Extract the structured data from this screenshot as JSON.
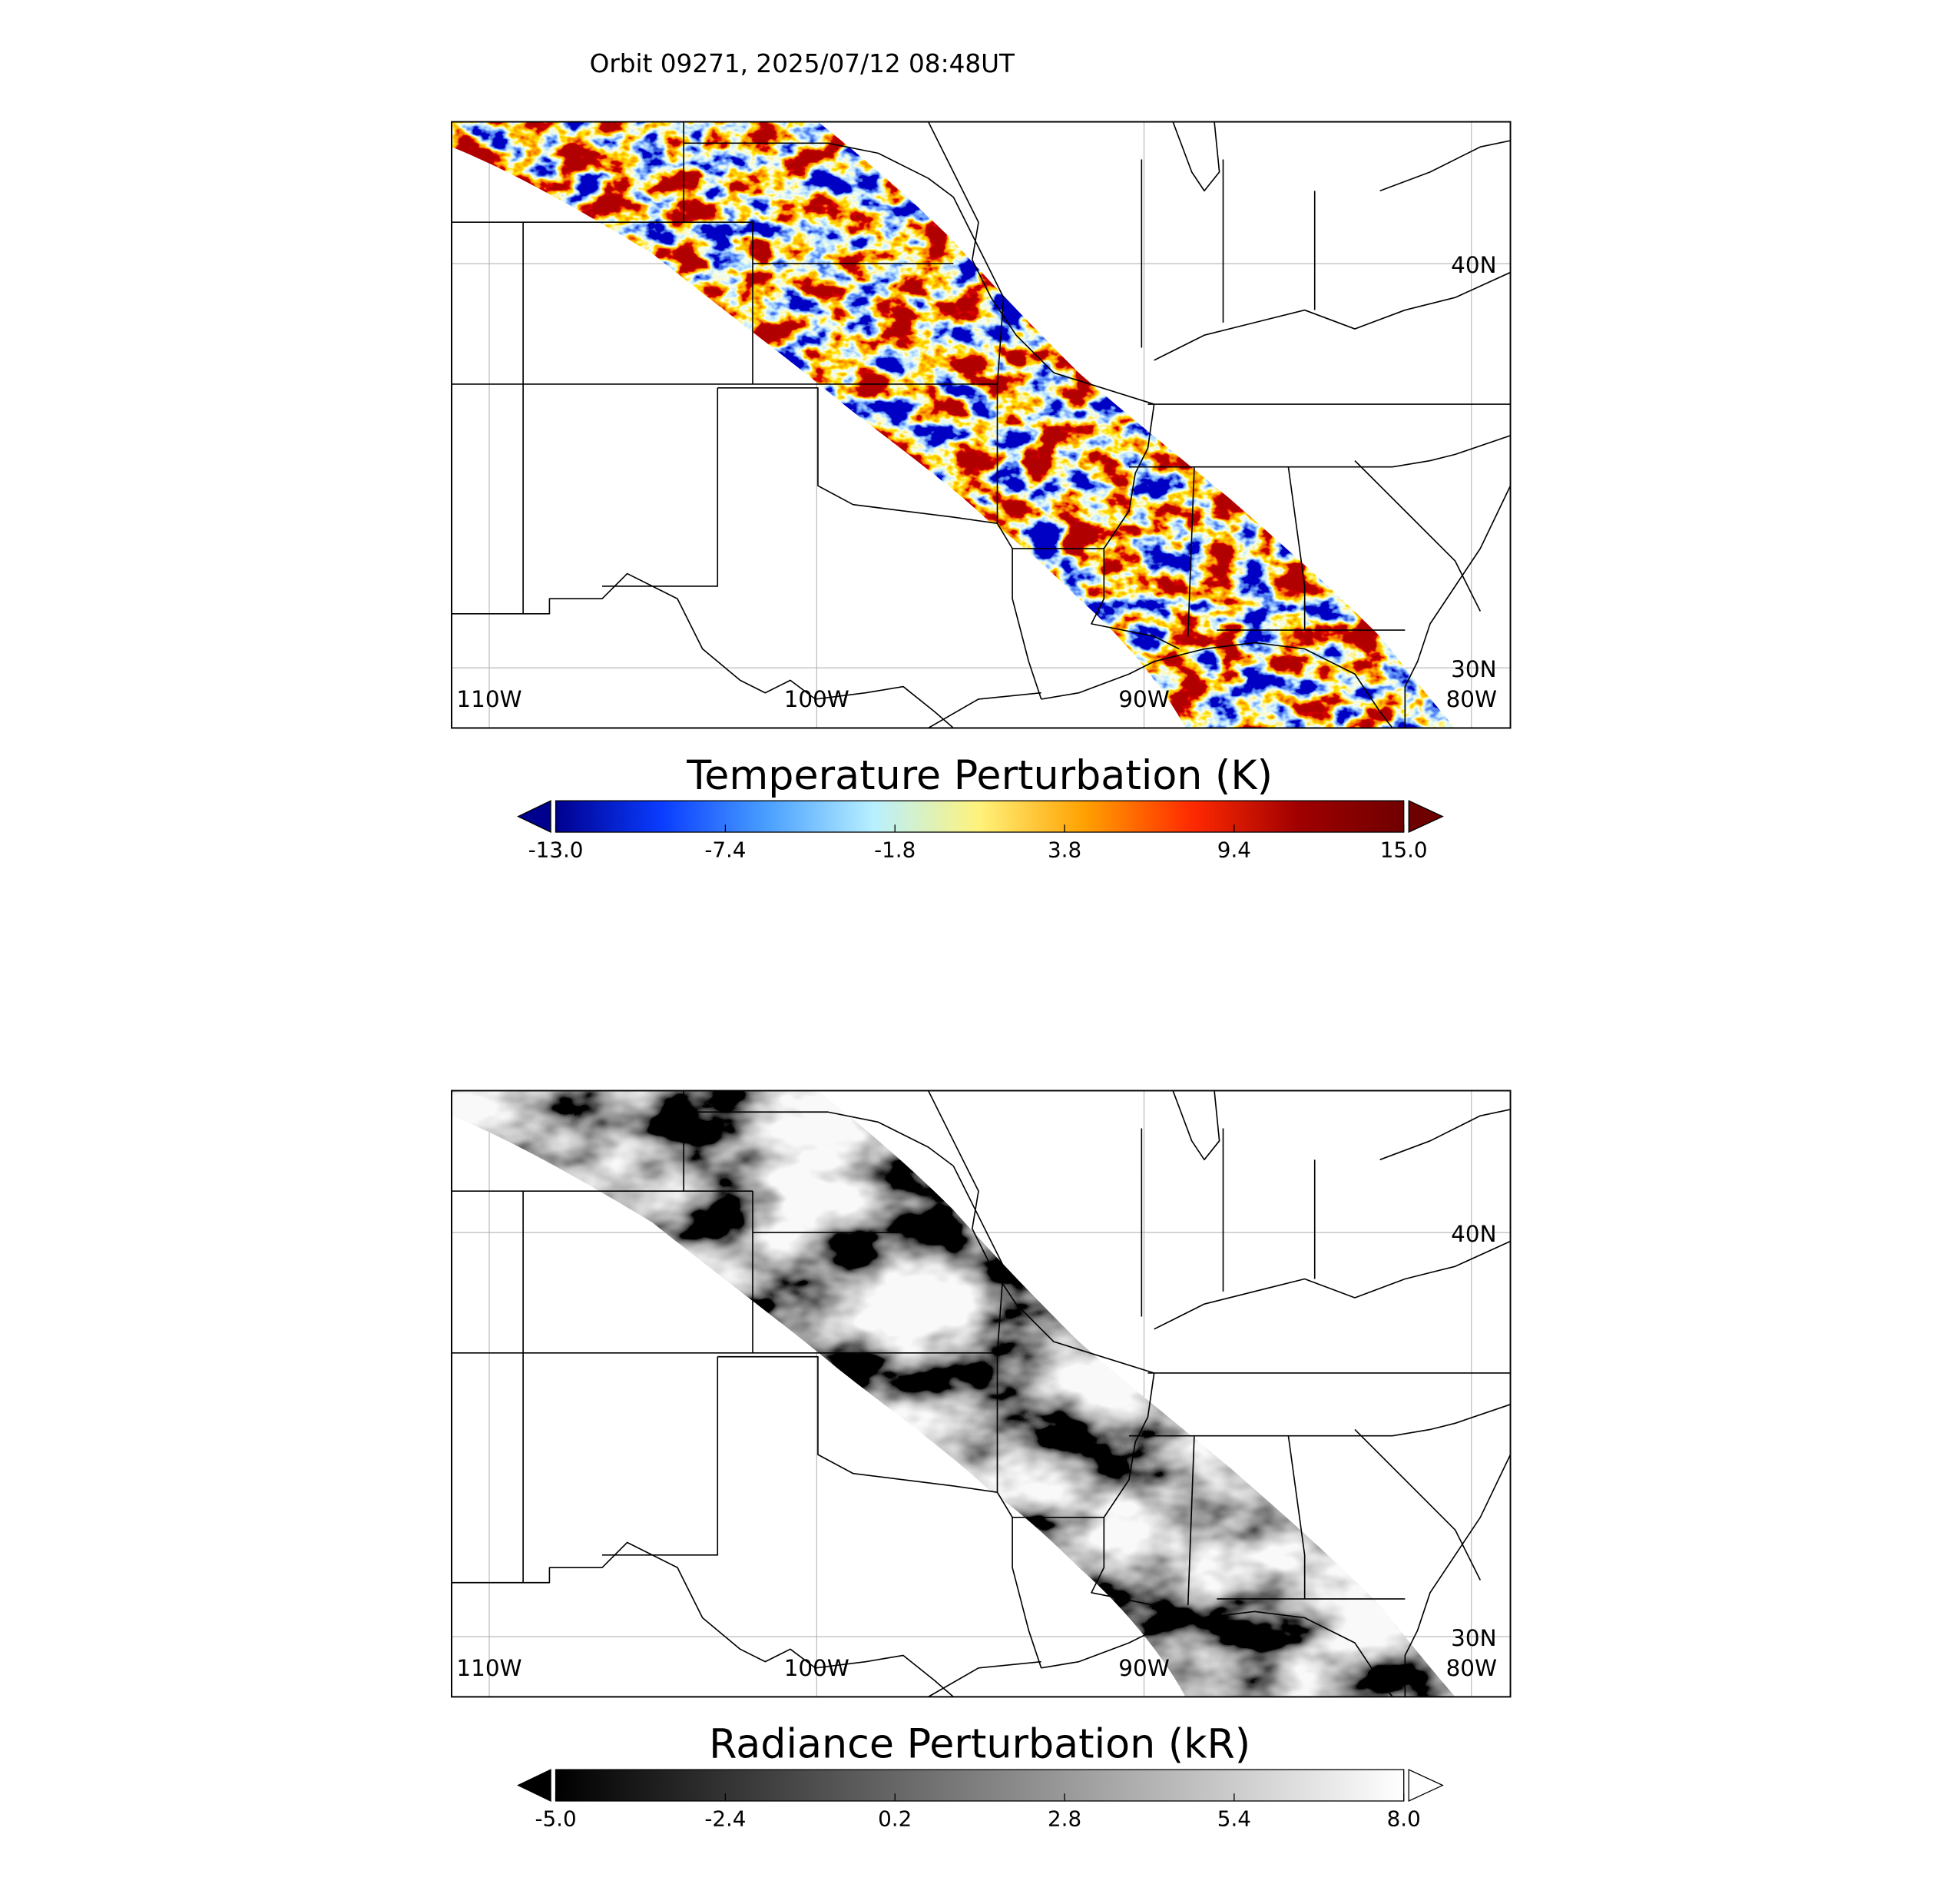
{
  "title": "Orbit 09271, 2025/07/12 08:48UT",
  "panels": [
    {
      "map": {
        "xlim": [
          -111.15,
          -78.81
        ],
        "ylim": [
          28.51,
          43.51
        ],
        "xticks": [
          {
            "value": -110,
            "label": "110W"
          },
          {
            "value": -100,
            "label": "100W"
          },
          {
            "value": -90,
            "label": "90W"
          },
          {
            "value": -80,
            "label": "80W"
          }
        ],
        "yticks": [
          {
            "value": 30,
            "label": "30N"
          },
          {
            "value": 40,
            "label": "40N"
          }
        ],
        "colors": [
          "#00008f",
          "#1f4fff",
          "#8fd6ff",
          "#f2ffd0",
          "#ffd000",
          "#ff5a00",
          "#c00000",
          "#6f0000"
        ]
      },
      "colorbar": {
        "label": "Temperature Perturbation (K)",
        "lim": [
          -13,
          15
        ],
        "ticks": [
          {
            "value": -13,
            "label": "-13.0"
          },
          -7.4,
          -1.8,
          3.8,
          9.4,
          {
            "value": 15,
            "label": "15.0"
          }
        ],
        "colors": [
          "#00008f",
          "#0a3cff",
          "#4aa0ff",
          "#b8f0ff",
          "#fff27a",
          "#ffa000",
          "#ff2a00",
          "#a00000",
          "#6f0000"
        ]
      }
    },
    {
      "map": {
        "xlim": [
          -111.15,
          -78.81
        ],
        "ylim": [
          28.51,
          43.51
        ],
        "xticks": [
          {
            "value": -110,
            "label": "110W"
          },
          {
            "value": -100,
            "label": "100W"
          },
          {
            "value": -90,
            "label": "90W"
          },
          {
            "value": -80,
            "label": "80W"
          }
        ],
        "yticks": [
          {
            "value": 30,
            "label": "30N"
          },
          {
            "value": 40,
            "label": "40N"
          }
        ],
        "colors": [
          "#000000",
          "#3a3a3a",
          "#777777",
          "#b5b5b5",
          "#f2f2f2"
        ]
      },
      "colorbar": {
        "label": "Radiance Perturbation (kR)",
        "lim": [
          -5,
          8
        ],
        "ticks": [
          {
            "value": -5,
            "label": "-5.0"
          },
          -2.4,
          0.2,
          2.8,
          5.4,
          {
            "value": 8,
            "label": "8.0"
          }
        ],
        "colors": [
          "#000000",
          "#ffffff"
        ]
      }
    }
  ]
}
